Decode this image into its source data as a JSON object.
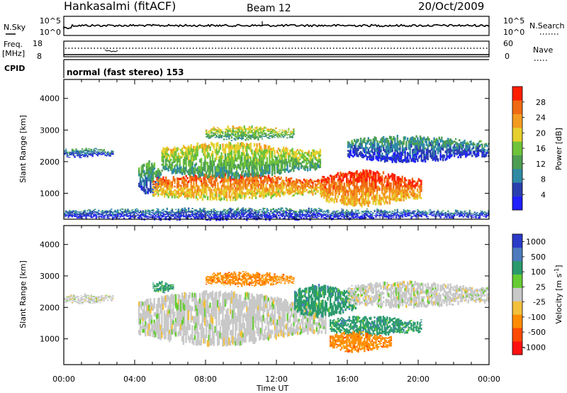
{
  "header": {
    "station": "Hankasalmi (fitACF)",
    "beam": "Beam 12",
    "date": "20/Oct/2009"
  },
  "top_panels": {
    "nsky": {
      "left_label": "N.Sky",
      "left_ticks": [
        "10^5",
        "10^0"
      ],
      "right_ticks": [
        "10^5",
        "10^0"
      ],
      "right_label": "N.Search"
    },
    "freq": {
      "left_label_1": "Freq.",
      "left_label_2": "[MHz]",
      "left_ticks": [
        "18",
        "8"
      ],
      "right_ticks": [
        "60",
        "0"
      ],
      "right_label": "Nave"
    },
    "cpid": {
      "label": "CPID",
      "text": "normal (fast stereo) 153"
    }
  },
  "x_axis": {
    "label": "Time UT",
    "ticks": [
      "00:00",
      "04:00",
      "08:00",
      "12:00",
      "16:00",
      "20:00",
      "00:00"
    ]
  },
  "colors": {
    "power_scale": [
      "#1f1fff",
      "#2a3fae",
      "#2f8aa3",
      "#4d9e52",
      "#6fc33a",
      "#e6cf2e",
      "#f39b21",
      "#ef6a12",
      "#ff1f00"
    ],
    "velocity_scale": [
      "#2a3ac8",
      "#4b7bbd",
      "#2a9a6c",
      "#66cc33",
      "#c8c8c8",
      "#f2c03c",
      "#ff8c00",
      "#ff4a00",
      "#ff1010"
    ]
  },
  "chart_data": [
    {
      "type": "heatmap",
      "title": "",
      "xlabel": "Time UT",
      "ylabel": "Slant Range [km]",
      "x_ticks": [
        "00:00",
        "04:00",
        "08:00",
        "12:00",
        "16:00",
        "20:00",
        "00:00"
      ],
      "x_range_hours": [
        0,
        24
      ],
      "ylim": [
        180,
        4600
      ],
      "y_ticks": [
        1000,
        2000,
        3000,
        4000
      ],
      "colorbar": {
        "label": "Power [dB]",
        "ticks": [
          4,
          8,
          12,
          16,
          20,
          24,
          28
        ],
        "range": [
          0,
          32
        ]
      },
      "echo_regions": [
        {
          "time_start_h": 0.0,
          "time_end_h": 2.8,
          "range_start_km": 2150,
          "range_end_km": 2400,
          "level_db": 8
        },
        {
          "time_start_h": 4.2,
          "time_end_h": 5.5,
          "range_start_km": 1000,
          "range_end_km": 2000,
          "level_db": 10
        },
        {
          "time_start_h": 5.0,
          "time_end_h": 14.8,
          "range_start_km": 800,
          "range_end_km": 1600,
          "level_db": 24
        },
        {
          "time_start_h": 5.5,
          "time_end_h": 14.5,
          "range_start_km": 1500,
          "range_end_km": 2600,
          "level_db": 16
        },
        {
          "time_start_h": 8.0,
          "time_end_h": 13.0,
          "range_start_km": 2700,
          "range_end_km": 3100,
          "level_db": 16
        },
        {
          "time_start_h": 14.5,
          "time_end_h": 20.2,
          "range_start_km": 600,
          "range_end_km": 1700,
          "level_db": 26
        },
        {
          "time_start_h": 16.0,
          "time_end_h": 24.0,
          "range_start_km": 2000,
          "range_end_km": 2800,
          "level_db": 8
        },
        {
          "time_start_h": 0.0,
          "time_end_h": 24.0,
          "range_start_km": 180,
          "range_end_km": 500,
          "level_db": 6
        }
      ]
    },
    {
      "type": "heatmap",
      "title": "",
      "xlabel": "Time UT",
      "ylabel": "Slant Range [km]",
      "x_ticks": [
        "00:00",
        "04:00",
        "08:00",
        "12:00",
        "16:00",
        "20:00",
        "00:00"
      ],
      "x_range_hours": [
        0,
        24
      ],
      "ylim": [
        180,
        4600
      ],
      "y_ticks": [
        1000,
        2000,
        3000,
        4000
      ],
      "colorbar": {
        "label": "Velocity [m s^-1]",
        "ticks": [
          1000,
          500,
          100,
          25,
          -25,
          -100,
          -500,
          -1000
        ]
      },
      "echo_regions": [
        {
          "time_start_h": 0.0,
          "time_end_h": 2.8,
          "range_start_km": 2150,
          "range_end_km": 2400,
          "velocity_ms": 0
        },
        {
          "time_start_h": 4.2,
          "time_end_h": 14.8,
          "range_start_km": 800,
          "range_end_km": 2500,
          "velocity_ms": 0
        },
        {
          "time_start_h": 5.0,
          "time_end_h": 6.2,
          "range_start_km": 2500,
          "range_end_km": 2800,
          "velocity_ms": 150
        },
        {
          "time_start_h": 8.0,
          "time_end_h": 13.0,
          "range_start_km": 2700,
          "range_end_km": 3100,
          "velocity_ms": -100
        },
        {
          "time_start_h": 13.0,
          "time_end_h": 16.5,
          "range_start_km": 1700,
          "range_end_km": 2700,
          "velocity_ms": 150
        },
        {
          "time_start_h": 15.0,
          "time_end_h": 20.2,
          "range_start_km": 1100,
          "range_end_km": 1700,
          "velocity_ms": 150
        },
        {
          "time_start_h": 15.0,
          "time_end_h": 18.5,
          "range_start_km": 600,
          "range_end_km": 1200,
          "velocity_ms": -100
        },
        {
          "time_start_h": 16.0,
          "time_end_h": 24.0,
          "range_start_km": 2000,
          "range_end_km": 2800,
          "velocity_ms": 0
        }
      ]
    }
  ]
}
